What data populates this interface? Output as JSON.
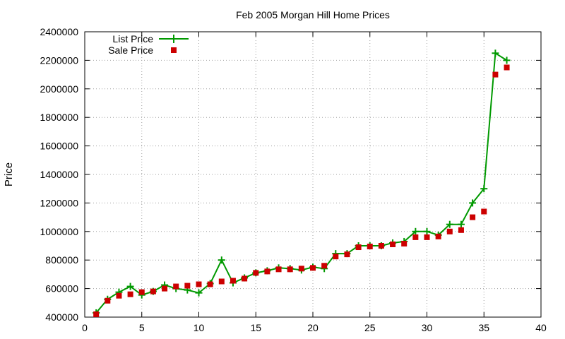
{
  "chart_data": {
    "type": "line",
    "title": "Feb 2005 Morgan Hill Home Prices",
    "xlabel": "",
    "ylabel": "Price",
    "xlim": [
      0,
      40
    ],
    "ylim": [
      400000,
      2400000
    ],
    "xticks": [
      0,
      5,
      10,
      15,
      20,
      25,
      30,
      35,
      40
    ],
    "yticks": [
      400000,
      600000,
      800000,
      1000000,
      1200000,
      1400000,
      1600000,
      1800000,
      2000000,
      2200000,
      2400000
    ],
    "grid": true,
    "legend_position": "top-left",
    "series": [
      {
        "name": "List Price",
        "style": "line+cross",
        "color": "#009900",
        "x": [
          1,
          2,
          3,
          4,
          5,
          6,
          7,
          8,
          9,
          10,
          11,
          12,
          13,
          14,
          15,
          16,
          17,
          18,
          19,
          20,
          21,
          22,
          23,
          24,
          25,
          26,
          27,
          28,
          29,
          30,
          31,
          32,
          33,
          34,
          35,
          36,
          37
        ],
        "values": [
          430000,
          525000,
          575000,
          615000,
          555000,
          580000,
          625000,
          600000,
          590000,
          570000,
          635000,
          800000,
          640000,
          675000,
          710000,
          725000,
          745000,
          740000,
          730000,
          750000,
          740000,
          845000,
          845000,
          900000,
          900000,
          900000,
          920000,
          930000,
          1000000,
          1000000,
          975000,
          1050000,
          1050000,
          1200000,
          1300000,
          2250000,
          2200000
        ]
      },
      {
        "name": "Sale Price",
        "style": "square",
        "color": "#cc0000",
        "x": [
          1,
          2,
          3,
          4,
          5,
          6,
          7,
          8,
          9,
          10,
          11,
          12,
          13,
          14,
          15,
          16,
          17,
          18,
          19,
          20,
          21,
          22,
          23,
          24,
          25,
          26,
          27,
          28,
          29,
          30,
          31,
          32,
          33,
          34,
          35,
          36,
          37
        ],
        "values": [
          420000,
          515000,
          550000,
          560000,
          575000,
          580000,
          600000,
          615000,
          620000,
          630000,
          630000,
          650000,
          655000,
          670000,
          710000,
          720000,
          735000,
          735000,
          740000,
          745000,
          760000,
          825000,
          840000,
          890000,
          895000,
          900000,
          910000,
          915000,
          960000,
          960000,
          965000,
          1000000,
          1010000,
          1100000,
          1140000,
          2100000,
          2150000
        ]
      }
    ]
  }
}
